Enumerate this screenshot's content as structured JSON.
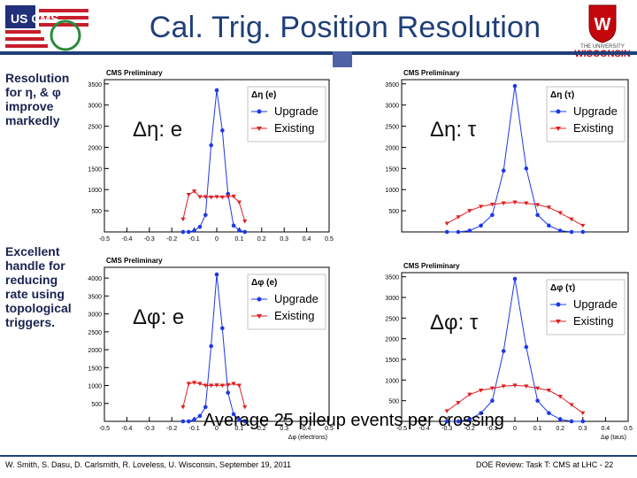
{
  "title": "Cal. Trig. Position Resolution",
  "side_notes": {
    "top": [
      "Resolution",
      "for η, & φ",
      "improve",
      "markedly"
    ],
    "bottom": [
      "Excellent",
      "handle for",
      "reducing",
      "rate using",
      "topological",
      "triggers."
    ]
  },
  "subtitle": "Average 25 pileup events per crossing",
  "footer": {
    "left": "W. Smith, S. Dasu, D. Carlsmith, R. Loveless, U. Wisconsin, September 19, 2011",
    "right": "DOE Review: Task T: CMS at LHC - 22"
  },
  "logos": {
    "left_text": "US CMS",
    "right_line1": "THE UNIVERSITY",
    "right_line2": "WISCONSIN",
    "right_crest": "W"
  },
  "colors": {
    "upgrade": "#1f38e6",
    "existing": "#e02020",
    "title": "#1f3f7a"
  },
  "chart_data": [
    {
      "type": "line",
      "header": "CMS Preliminary",
      "big_label": "Δη: e",
      "legend_title": "Δη (e)",
      "legend_position": "top-right",
      "xlim": [
        -0.5,
        0.5
      ],
      "ylim": [
        0,
        3600
      ],
      "x_ticks": [
        "-0.5",
        "-0.4",
        "-0.3",
        "-0.2",
        "-0.1",
        "0",
        "0.1",
        "0.2",
        "0.3",
        "0.4",
        "0.5"
      ],
      "y_ticks": [
        500,
        1000,
        1500,
        2000,
        2500,
        3000,
        3500
      ],
      "xlabel": "",
      "x": [
        -0.15,
        -0.125,
        -0.1,
        -0.075,
        -0.05,
        -0.025,
        0.0,
        0.025,
        0.05,
        0.075,
        0.1,
        0.125
      ],
      "series": [
        {
          "name": "Upgrade",
          "marker": "circle",
          "values": [
            0,
            0,
            30,
            120,
            400,
            2050,
            3350,
            2400,
            900,
            150,
            40,
            0
          ]
        },
        {
          "name": "Existing",
          "marker": "triangle-down",
          "values": [
            300,
            880,
            960,
            830,
            830,
            820,
            830,
            820,
            840,
            840,
            700,
            250
          ]
        }
      ]
    },
    {
      "type": "line",
      "header": "CMS Preliminary",
      "big_label": "Δη: τ",
      "legend_title": "Δη (τ)",
      "legend_position": "top-right",
      "xlim": [
        -0.5,
        0.5
      ],
      "ylim": [
        0,
        3600
      ],
      "x_ticks": [],
      "y_ticks": [
        500,
        1000,
        1500,
        2000,
        2500,
        3000,
        3500
      ],
      "xlabel": "",
      "x": [
        -0.3,
        -0.25,
        -0.2,
        -0.15,
        -0.1,
        -0.05,
        0.0,
        0.05,
        0.1,
        0.15,
        0.2,
        0.25,
        0.3
      ],
      "series": [
        {
          "name": "Upgrade",
          "marker": "circle",
          "values": [
            0,
            0,
            30,
            150,
            400,
            1450,
            3450,
            1500,
            400,
            150,
            30,
            0,
            0
          ]
        },
        {
          "name": "Existing",
          "marker": "triangle-down",
          "values": [
            200,
            350,
            500,
            600,
            650,
            680,
            700,
            680,
            640,
            580,
            450,
            300,
            150
          ]
        }
      ]
    },
    {
      "type": "line",
      "header": "CMS Preliminary",
      "big_label": "Δφ: e",
      "legend_title": "Δφ (e)",
      "legend_position": "top-right",
      "xlim": [
        -0.5,
        0.5
      ],
      "ylim": [
        0,
        4300
      ],
      "x_ticks": [
        "-0.5",
        "-0.4",
        "-0.3",
        "-0.2",
        "-0.1",
        "0",
        "0.1",
        "0.2",
        "0.3",
        "0.4",
        "0.5"
      ],
      "y_ticks": [
        500,
        1000,
        1500,
        2000,
        2500,
        3000,
        3500,
        4000
      ],
      "xlabel": "Δφ (electrons)",
      "x": [
        -0.15,
        -0.125,
        -0.1,
        -0.075,
        -0.05,
        -0.025,
        0.0,
        0.025,
        0.05,
        0.075,
        0.1,
        0.125
      ],
      "series": [
        {
          "name": "Upgrade",
          "marker": "circle",
          "values": [
            0,
            0,
            50,
            150,
            400,
            2100,
            4100,
            2600,
            800,
            200,
            50,
            0
          ]
        },
        {
          "name": "Existing",
          "marker": "triangle-down",
          "values": [
            400,
            1050,
            1080,
            1050,
            1000,
            1000,
            1010,
            1000,
            1020,
            1050,
            1000,
            400
          ]
        }
      ]
    },
    {
      "type": "line",
      "header": "CMS Preliminary",
      "big_label": "Δφ: τ",
      "legend_title": "Δφ (τ)",
      "legend_position": "top-right",
      "xlim": [
        -0.5,
        0.5
      ],
      "ylim": [
        0,
        3600
      ],
      "x_ticks": [
        "-0.5",
        "-0.4",
        "-0.3",
        "-0.2",
        "-0.1",
        "0",
        "0.1",
        "0.2",
        "0.3",
        "0.4",
        "0.5"
      ],
      "y_ticks": [
        500,
        1000,
        1500,
        2000,
        2500,
        3000,
        3500
      ],
      "xlabel": "Δφ (taus)",
      "x": [
        -0.3,
        -0.25,
        -0.2,
        -0.15,
        -0.1,
        -0.05,
        0.0,
        0.05,
        0.1,
        0.15,
        0.2,
        0.25,
        0.3
      ],
      "series": [
        {
          "name": "Upgrade",
          "marker": "circle",
          "values": [
            0,
            0,
            50,
            200,
            500,
            1700,
            3450,
            1800,
            500,
            200,
            50,
            0,
            0
          ]
        },
        {
          "name": "Existing",
          "marker": "triangle-down",
          "values": [
            250,
            450,
            650,
            750,
            800,
            850,
            870,
            850,
            800,
            750,
            600,
            400,
            200
          ]
        }
      ]
    }
  ]
}
